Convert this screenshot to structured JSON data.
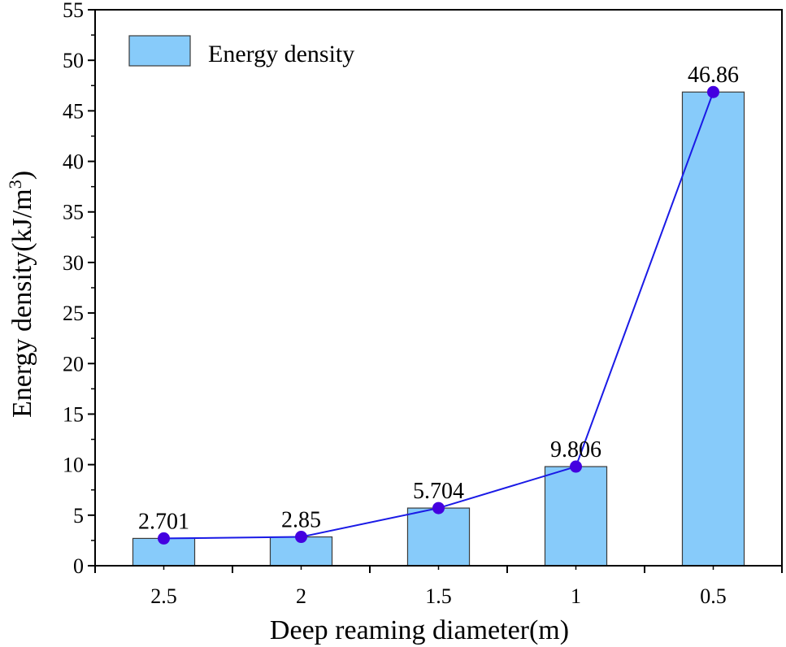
{
  "chart_data": {
    "type": "bar",
    "categories": [
      "2.5",
      "2",
      "1.5",
      "1",
      "0.5"
    ],
    "values": [
      2.701,
      2.85,
      5.704,
      9.806,
      46.86
    ],
    "data_labels": [
      "2.701",
      "2.85",
      "5.704",
      "9.806",
      "46.86"
    ],
    "series": [
      {
        "name": "Energy density",
        "values": [
          2.701,
          2.85,
          5.704,
          9.806,
          46.86
        ],
        "render": "bar+line"
      }
    ],
    "xlabel": "Deep reaming diameter(m)",
    "ylabel_main": "Energy density(kJ/m",
    "ylabel_sup": "3",
    "ylabel_close": ")",
    "ylim": [
      0,
      55
    ],
    "yticks": [
      0,
      5,
      10,
      15,
      20,
      25,
      30,
      35,
      40,
      45,
      50,
      55
    ],
    "grid": false,
    "legend": {
      "position": "top-left",
      "entries": [
        "Energy density"
      ]
    },
    "colors": {
      "bar_fill": "#87CBFA",
      "bar_stroke": "#3A3A3A",
      "line": "#1A1AE6",
      "marker": "#4400E0"
    }
  }
}
